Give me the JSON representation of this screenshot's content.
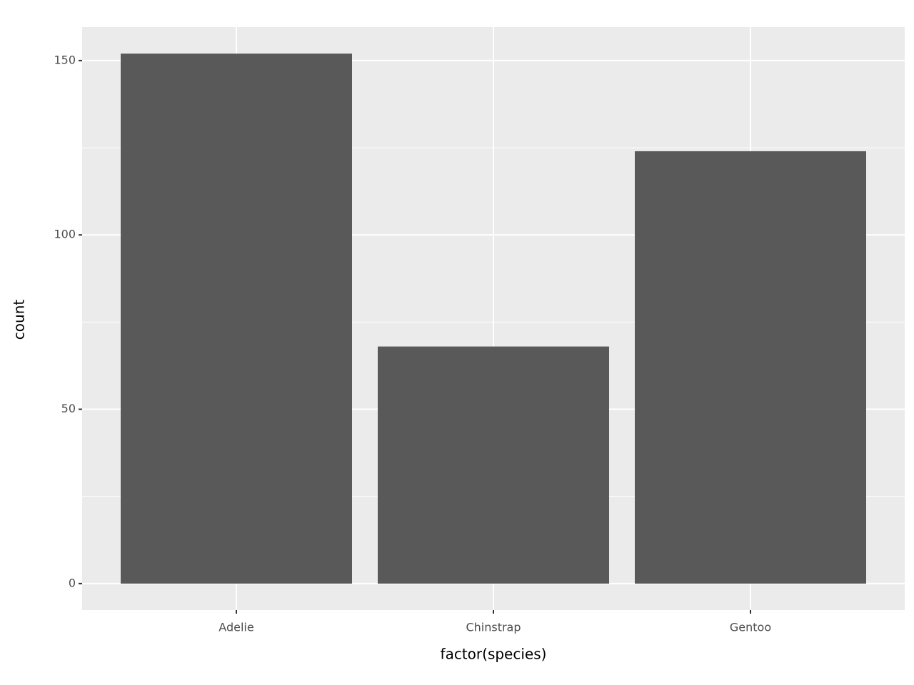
{
  "chart_data": {
    "type": "bar",
    "x_label": "factor(species)",
    "y_label": "count",
    "categories": [
      "Adelie",
      "Chinstrap",
      "Gentoo"
    ],
    "values": [
      152,
      68,
      124
    ],
    "color": "#595959",
    "ylim": [
      -7.6,
      159.6
    ],
    "yticks": [
      0,
      50,
      100,
      150
    ],
    "minor_yticks": [
      25,
      75,
      125
    ],
    "grid": true
  }
}
